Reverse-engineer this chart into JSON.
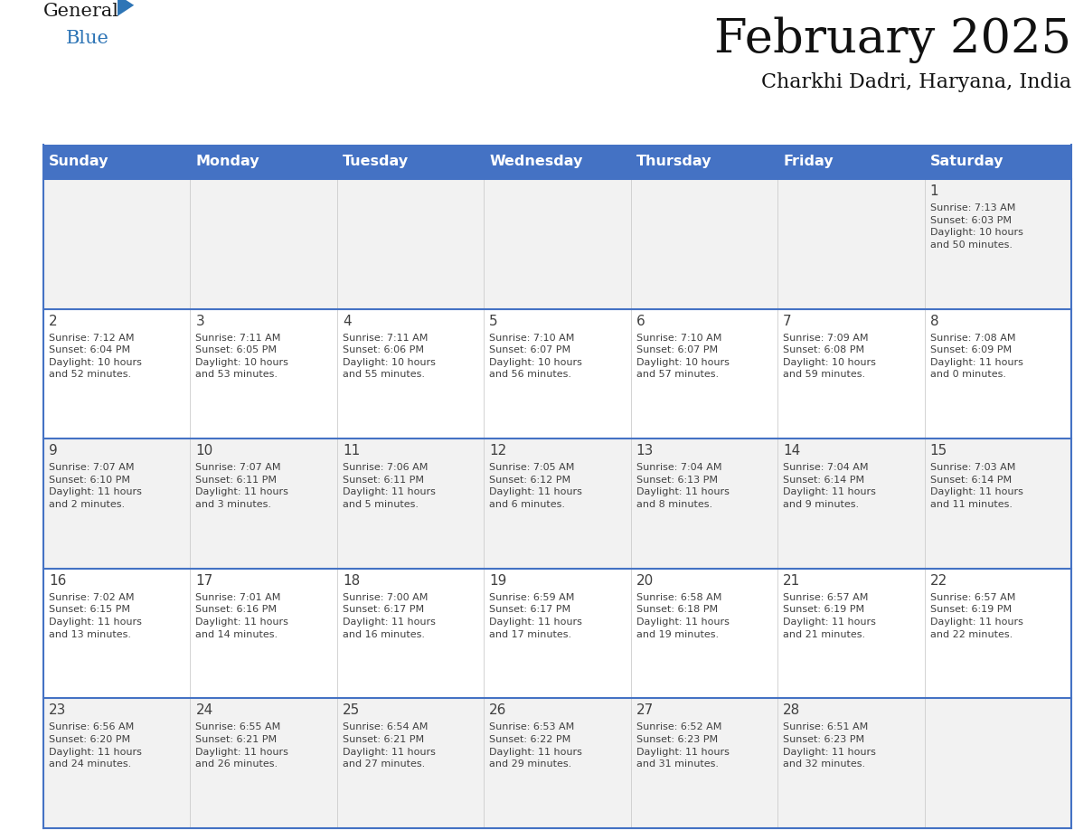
{
  "title": "February 2025",
  "subtitle": "Charkhi Dadri, Haryana, India",
  "header_color": "#4472C4",
  "header_text_color": "#FFFFFF",
  "weekdays": [
    "Sunday",
    "Monday",
    "Tuesday",
    "Wednesday",
    "Thursday",
    "Friday",
    "Saturday"
  ],
  "background_color": "#FFFFFF",
  "cell_bg_row0": "#F2F2F2",
  "cell_bg_row1": "#FFFFFF",
  "cell_bg_row2": "#F2F2F2",
  "cell_bg_row3": "#FFFFFF",
  "cell_bg_row4": "#F2F2F2",
  "row_line_color": "#4472C4",
  "text_color": "#404040",
  "days": [
    {
      "day": 1,
      "col": 6,
      "row": 0,
      "sunrise": "7:13 AM",
      "sunset": "6:03 PM",
      "daylight": "10 hours\nand 50 minutes."
    },
    {
      "day": 2,
      "col": 0,
      "row": 1,
      "sunrise": "7:12 AM",
      "sunset": "6:04 PM",
      "daylight": "10 hours\nand 52 minutes."
    },
    {
      "day": 3,
      "col": 1,
      "row": 1,
      "sunrise": "7:11 AM",
      "sunset": "6:05 PM",
      "daylight": "10 hours\nand 53 minutes."
    },
    {
      "day": 4,
      "col": 2,
      "row": 1,
      "sunrise": "7:11 AM",
      "sunset": "6:06 PM",
      "daylight": "10 hours\nand 55 minutes."
    },
    {
      "day": 5,
      "col": 3,
      "row": 1,
      "sunrise": "7:10 AM",
      "sunset": "6:07 PM",
      "daylight": "10 hours\nand 56 minutes."
    },
    {
      "day": 6,
      "col": 4,
      "row": 1,
      "sunrise": "7:10 AM",
      "sunset": "6:07 PM",
      "daylight": "10 hours\nand 57 minutes."
    },
    {
      "day": 7,
      "col": 5,
      "row": 1,
      "sunrise": "7:09 AM",
      "sunset": "6:08 PM",
      "daylight": "10 hours\nand 59 minutes."
    },
    {
      "day": 8,
      "col": 6,
      "row": 1,
      "sunrise": "7:08 AM",
      "sunset": "6:09 PM",
      "daylight": "11 hours\nand 0 minutes."
    },
    {
      "day": 9,
      "col": 0,
      "row": 2,
      "sunrise": "7:07 AM",
      "sunset": "6:10 PM",
      "daylight": "11 hours\nand 2 minutes."
    },
    {
      "day": 10,
      "col": 1,
      "row": 2,
      "sunrise": "7:07 AM",
      "sunset": "6:11 PM",
      "daylight": "11 hours\nand 3 minutes."
    },
    {
      "day": 11,
      "col": 2,
      "row": 2,
      "sunrise": "7:06 AM",
      "sunset": "6:11 PM",
      "daylight": "11 hours\nand 5 minutes."
    },
    {
      "day": 12,
      "col": 3,
      "row": 2,
      "sunrise": "7:05 AM",
      "sunset": "6:12 PM",
      "daylight": "11 hours\nand 6 minutes."
    },
    {
      "day": 13,
      "col": 4,
      "row": 2,
      "sunrise": "7:04 AM",
      "sunset": "6:13 PM",
      "daylight": "11 hours\nand 8 minutes."
    },
    {
      "day": 14,
      "col": 5,
      "row": 2,
      "sunrise": "7:04 AM",
      "sunset": "6:14 PM",
      "daylight": "11 hours\nand 9 minutes."
    },
    {
      "day": 15,
      "col": 6,
      "row": 2,
      "sunrise": "7:03 AM",
      "sunset": "6:14 PM",
      "daylight": "11 hours\nand 11 minutes."
    },
    {
      "day": 16,
      "col": 0,
      "row": 3,
      "sunrise": "7:02 AM",
      "sunset": "6:15 PM",
      "daylight": "11 hours\nand 13 minutes."
    },
    {
      "day": 17,
      "col": 1,
      "row": 3,
      "sunrise": "7:01 AM",
      "sunset": "6:16 PM",
      "daylight": "11 hours\nand 14 minutes."
    },
    {
      "day": 18,
      "col": 2,
      "row": 3,
      "sunrise": "7:00 AM",
      "sunset": "6:17 PM",
      "daylight": "11 hours\nand 16 minutes."
    },
    {
      "day": 19,
      "col": 3,
      "row": 3,
      "sunrise": "6:59 AM",
      "sunset": "6:17 PM",
      "daylight": "11 hours\nand 17 minutes."
    },
    {
      "day": 20,
      "col": 4,
      "row": 3,
      "sunrise": "6:58 AM",
      "sunset": "6:18 PM",
      "daylight": "11 hours\nand 19 minutes."
    },
    {
      "day": 21,
      "col": 5,
      "row": 3,
      "sunrise": "6:57 AM",
      "sunset": "6:19 PM",
      "daylight": "11 hours\nand 21 minutes."
    },
    {
      "day": 22,
      "col": 6,
      "row": 3,
      "sunrise": "6:57 AM",
      "sunset": "6:19 PM",
      "daylight": "11 hours\nand 22 minutes."
    },
    {
      "day": 23,
      "col": 0,
      "row": 4,
      "sunrise": "6:56 AM",
      "sunset": "6:20 PM",
      "daylight": "11 hours\nand 24 minutes."
    },
    {
      "day": 24,
      "col": 1,
      "row": 4,
      "sunrise": "6:55 AM",
      "sunset": "6:21 PM",
      "daylight": "11 hours\nand 26 minutes."
    },
    {
      "day": 25,
      "col": 2,
      "row": 4,
      "sunrise": "6:54 AM",
      "sunset": "6:21 PM",
      "daylight": "11 hours\nand 27 minutes."
    },
    {
      "day": 26,
      "col": 3,
      "row": 4,
      "sunrise": "6:53 AM",
      "sunset": "6:22 PM",
      "daylight": "11 hours\nand 29 minutes."
    },
    {
      "day": 27,
      "col": 4,
      "row": 4,
      "sunrise": "6:52 AM",
      "sunset": "6:23 PM",
      "daylight": "11 hours\nand 31 minutes."
    },
    {
      "day": 28,
      "col": 5,
      "row": 4,
      "sunrise": "6:51 AM",
      "sunset": "6:23 PM",
      "daylight": "11 hours\nand 32 minutes."
    }
  ],
  "logo_general_color": "#1a1a1a",
  "logo_blue_color": "#2E75B6",
  "logo_triangle_color": "#2E75B6"
}
